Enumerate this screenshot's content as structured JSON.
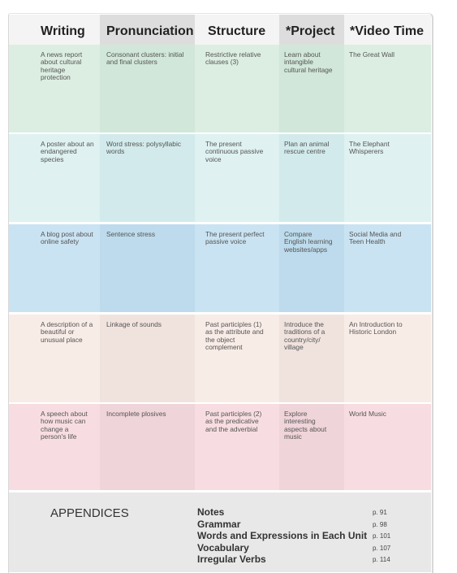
{
  "header": {
    "columns": [
      "Writing",
      "Pronunciation",
      "Structure",
      "*Project",
      "*Video Time"
    ]
  },
  "table": {
    "rows": [
      [
        "A news report about cultural heritage protection",
        "Consonant clusters: initial and final clusters",
        "Restrictive relative clauses (3)",
        "Learn about intangible cultural heritage",
        "The Great Wall"
      ],
      [
        "A poster about an endangered species",
        "Word stress: polysyllabic words",
        "The present continuous passive voice",
        "Plan an animal rescue centre",
        "The Elephant Whisperers"
      ],
      [
        "A blog post about online safety",
        "Sentence stress",
        "The present perfect passive voice",
        "Compare English learning websites/apps",
        "Social Media and Teen Health"
      ],
      [
        "A description of a beautiful or unusual place",
        "Linkage of sounds",
        "Past participles (1) as the attribute and the object complement",
        "Introduce the traditions of a country/city/ village",
        "An Introduction to Historic London"
      ],
      [
        "A speech about how music can change a person's life",
        "Incomplete plosives",
        "Past participles (2) as the predicative and the adverbial",
        "Explore interesting aspects about music",
        "World Music"
      ]
    ]
  },
  "appendices": {
    "title": "APPENDICES",
    "items": [
      {
        "name": "Notes",
        "page": "p. 91"
      },
      {
        "name": "Grammar",
        "page": "p. 98"
      },
      {
        "name": "Words and Expressions in Each Unit",
        "page": "p. 101"
      },
      {
        "name": "Vocabulary",
        "page": "p. 107"
      },
      {
        "name": "Irregular Verbs",
        "page": "p. 114"
      }
    ]
  }
}
